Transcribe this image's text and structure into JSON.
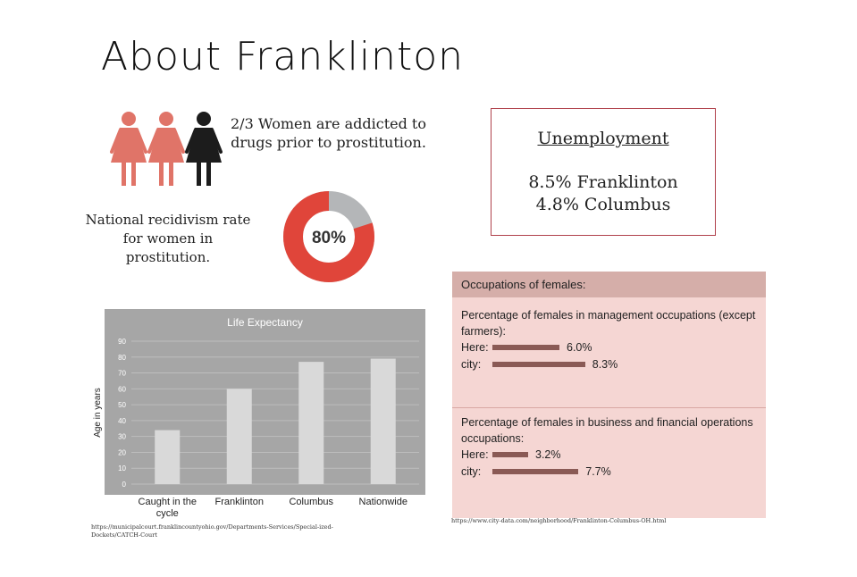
{
  "title": "About Franklinton",
  "addicted_text": "2/3 Women are addicted to drugs prior to prostitution.",
  "recidivism_text": "National recidivism rate for women in prostitution.",
  "donut": {
    "value": 80,
    "label": "80%",
    "colors": {
      "main": "#e0453a",
      "rest": "#b4b6b8"
    }
  },
  "icon_colors": {
    "highlight": "#e07468",
    "dark": "#1c1c1c"
  },
  "unemployment": {
    "title": "Unemployment",
    "line1": "8.5% Franklinton",
    "line2": "4.8% Columbus"
  },
  "occupations": {
    "header": "Occupations of females:",
    "sections": [
      {
        "title": "Percentage of females in management occupations (except farmers):",
        "here_label": "Here:",
        "here_value": 6.0,
        "here_text": "6.0%",
        "city_label": "city:",
        "city_value": 8.3,
        "city_text": "8.3%"
      },
      {
        "title": "Percentage of females in business and financial operations occupations:",
        "here_label": "Here:",
        "here_value": 3.2,
        "here_text": "3.2%",
        "city_label": "city:",
        "city_value": 7.7,
        "city_text": "7.7%"
      }
    ]
  },
  "chart_data": {
    "type": "bar",
    "title": "Life Expectancy",
    "ylabel": "Age in years",
    "xlabel": "",
    "categories": [
      "Caught in the cycle",
      "Franklinton",
      "Columbus",
      "Nationwide"
    ],
    "values": [
      34,
      60,
      77,
      79
    ],
    "ylim": [
      0,
      90
    ],
    "yticks": [
      0,
      10,
      20,
      30,
      40,
      50,
      60,
      70,
      80,
      90
    ],
    "grid": true,
    "colors": {
      "bar": "#d9d9d9",
      "background": "#a6a6a6"
    }
  },
  "source_left": "https://municipalcourt.franklincountyohio.gov/Departments-Services/Special-ized-Dockets/CATCH-Court",
  "source_right": "https://www.city-data.com/neighborhood/Franklinton-Columbus-OH.html"
}
